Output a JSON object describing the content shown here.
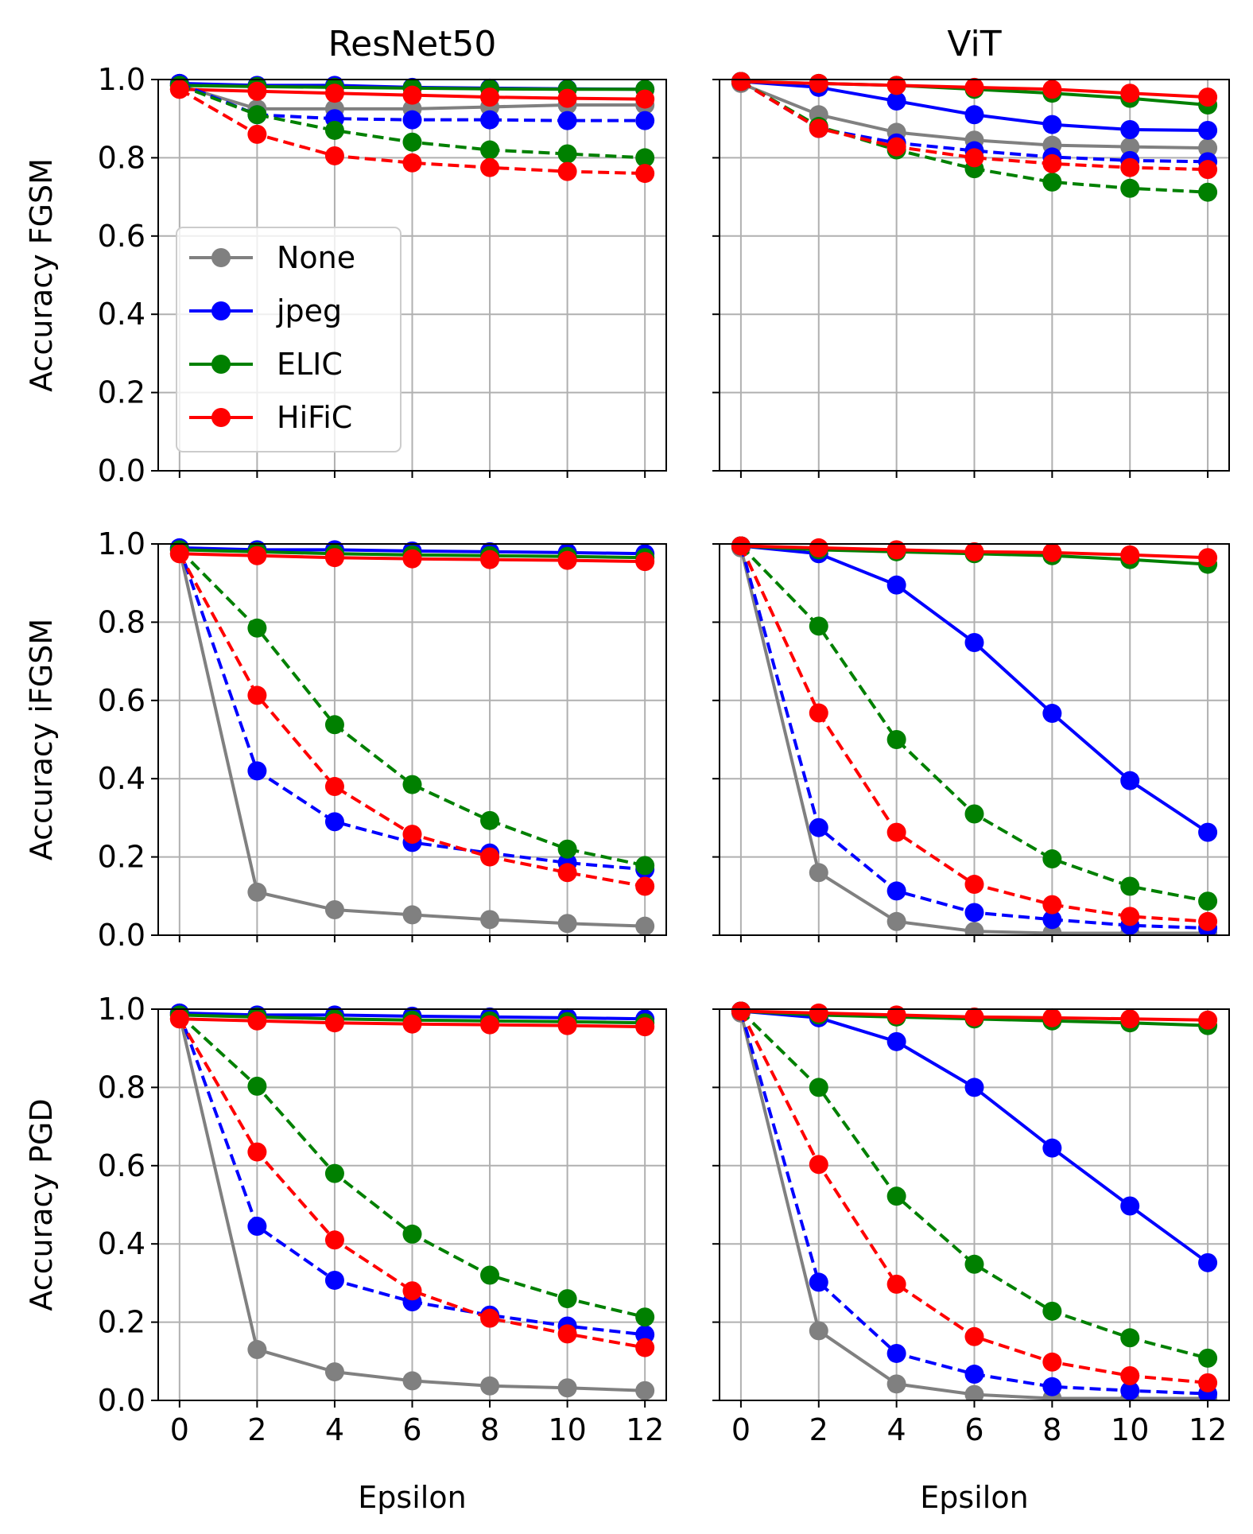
{
  "figure": {
    "column_titles": [
      "ResNet50",
      "ViT"
    ],
    "row_ylabels": [
      "Accuracy FGSM",
      "Accuracy iFGSM",
      "Accuracy PGD"
    ],
    "xlabel": "Epsilon",
    "legend": [
      "None",
      "jpeg",
      "ELIC",
      "HiFiC"
    ],
    "colors": {
      "None": "#808080",
      "jpeg": "#0000ff",
      "ELIC": "#008000",
      "HiFiC": "#ff0000"
    }
  },
  "chart_data": [
    {
      "type": "line",
      "title": "ResNet50",
      "ylabel": "Accuracy FGSM",
      "xlabel": "",
      "x": [
        0,
        2,
        4,
        6,
        8,
        10,
        12
      ],
      "xlim": [
        -0.55,
        12.55
      ],
      "ylim": [
        0,
        1.0
      ],
      "xticks": [
        "0",
        "2",
        "4",
        "6",
        "8",
        "10",
        "12"
      ],
      "yticks": [
        "0.0",
        "0.2",
        "0.4",
        "0.6",
        "0.8",
        "1.0"
      ],
      "legend": "center-left",
      "grid": true,
      "series": [
        {
          "name": "None",
          "style": "solid",
          "values": [
            0.985,
            0.925,
            0.925,
            0.925,
            0.93,
            0.935,
            0.935
          ]
        },
        {
          "name": "jpeg",
          "style": "solid",
          "values": [
            0.99,
            0.985,
            0.985,
            0.98,
            0.978,
            0.976,
            0.975
          ]
        },
        {
          "name": "ELIC",
          "style": "solid",
          "values": [
            0.985,
            0.982,
            0.98,
            0.978,
            0.976,
            0.975,
            0.975
          ]
        },
        {
          "name": "HiFiC",
          "style": "solid",
          "values": [
            0.975,
            0.97,
            0.965,
            0.96,
            0.955,
            0.952,
            0.95
          ]
        },
        {
          "name": "jpeg",
          "style": "dashed",
          "values": [
            0.99,
            0.91,
            0.9,
            0.897,
            0.897,
            0.895,
            0.895
          ]
        },
        {
          "name": "ELIC",
          "style": "dashed",
          "values": [
            0.985,
            0.91,
            0.87,
            0.84,
            0.82,
            0.81,
            0.8
          ]
        },
        {
          "name": "HiFiC",
          "style": "dashed",
          "values": [
            0.975,
            0.86,
            0.805,
            0.787,
            0.775,
            0.765,
            0.76
          ]
        }
      ]
    },
    {
      "type": "line",
      "title": "ViT",
      "ylabel": "",
      "xlabel": "",
      "x": [
        0,
        2,
        4,
        6,
        8,
        10,
        12
      ],
      "xlim": [
        -0.55,
        12.55
      ],
      "ylim": [
        0,
        1.0
      ],
      "xticks": [
        "0",
        "2",
        "4",
        "6",
        "8",
        "10",
        "12"
      ],
      "yticks": [],
      "legend": "",
      "grid": true,
      "series": [
        {
          "name": "None",
          "style": "solid",
          "values": [
            0.99,
            0.91,
            0.865,
            0.845,
            0.832,
            0.828,
            0.825
          ]
        },
        {
          "name": "jpeg",
          "style": "solid",
          "values": [
            0.995,
            0.98,
            0.945,
            0.91,
            0.885,
            0.872,
            0.87
          ]
        },
        {
          "name": "ELIC",
          "style": "solid",
          "values": [
            0.995,
            0.99,
            0.985,
            0.975,
            0.965,
            0.952,
            0.935
          ]
        },
        {
          "name": "HiFiC",
          "style": "solid",
          "values": [
            0.995,
            0.99,
            0.985,
            0.98,
            0.975,
            0.965,
            0.955
          ]
        },
        {
          "name": "jpeg",
          "style": "dashed",
          "values": [
            0.995,
            0.875,
            0.838,
            0.818,
            0.802,
            0.793,
            0.79
          ]
        },
        {
          "name": "ELIC",
          "style": "dashed",
          "values": [
            0.995,
            0.88,
            0.82,
            0.772,
            0.738,
            0.722,
            0.712
          ]
        },
        {
          "name": "HiFiC",
          "style": "dashed",
          "values": [
            0.995,
            0.875,
            0.828,
            0.8,
            0.785,
            0.775,
            0.77
          ]
        }
      ]
    },
    {
      "type": "line",
      "title": "",
      "ylabel": "Accuracy iFGSM",
      "xlabel": "",
      "x": [
        0,
        2,
        4,
        6,
        8,
        10,
        12
      ],
      "xlim": [
        -0.55,
        12.55
      ],
      "ylim": [
        0,
        1.0
      ],
      "xticks": [
        "0",
        "2",
        "4",
        "6",
        "8",
        "10",
        "12"
      ],
      "yticks": [
        "0.0",
        "0.2",
        "0.4",
        "0.6",
        "0.8",
        "1.0"
      ],
      "legend": "",
      "grid": true,
      "series": [
        {
          "name": "None",
          "style": "solid",
          "values": [
            0.985,
            0.11,
            0.065,
            0.052,
            0.04,
            0.03,
            0.023
          ]
        },
        {
          "name": "jpeg",
          "style": "solid",
          "values": [
            0.99,
            0.985,
            0.985,
            0.982,
            0.98,
            0.978,
            0.975
          ]
        },
        {
          "name": "ELIC",
          "style": "solid",
          "values": [
            0.985,
            0.98,
            0.975,
            0.972,
            0.97,
            0.968,
            0.965
          ]
        },
        {
          "name": "HiFiC",
          "style": "solid",
          "values": [
            0.975,
            0.97,
            0.965,
            0.962,
            0.96,
            0.958,
            0.955
          ]
        },
        {
          "name": "jpeg",
          "style": "dashed",
          "values": [
            0.99,
            0.42,
            0.29,
            0.237,
            0.21,
            0.185,
            0.168
          ]
        },
        {
          "name": "ELIC",
          "style": "dashed",
          "values": [
            0.985,
            0.785,
            0.538,
            0.385,
            0.293,
            0.22,
            0.178
          ]
        },
        {
          "name": "HiFiC",
          "style": "dashed",
          "values": [
            0.975,
            0.613,
            0.38,
            0.258,
            0.2,
            0.16,
            0.125
          ]
        }
      ]
    },
    {
      "type": "line",
      "title": "",
      "ylabel": "",
      "xlabel": "",
      "x": [
        0,
        2,
        4,
        6,
        8,
        10,
        12
      ],
      "xlim": [
        -0.55,
        12.55
      ],
      "ylim": [
        0,
        1.0
      ],
      "xticks": [
        "0",
        "2",
        "4",
        "6",
        "8",
        "10",
        "12"
      ],
      "yticks": [],
      "legend": "",
      "grid": true,
      "series": [
        {
          "name": "None",
          "style": "solid",
          "values": [
            0.99,
            0.16,
            0.035,
            0.01,
            0.005,
            0.005,
            0.005
          ]
        },
        {
          "name": "jpeg",
          "style": "solid",
          "values": [
            0.995,
            0.975,
            0.895,
            0.748,
            0.567,
            0.395,
            0.263
          ]
        },
        {
          "name": "ELIC",
          "style": "solid",
          "values": [
            0.995,
            0.985,
            0.98,
            0.975,
            0.97,
            0.96,
            0.948
          ]
        },
        {
          "name": "HiFiC",
          "style": "solid",
          "values": [
            0.995,
            0.99,
            0.985,
            0.98,
            0.978,
            0.972,
            0.965
          ]
        },
        {
          "name": "jpeg",
          "style": "dashed",
          "values": [
            0.995,
            0.275,
            0.113,
            0.058,
            0.04,
            0.025,
            0.018
          ]
        },
        {
          "name": "ELIC",
          "style": "dashed",
          "values": [
            0.995,
            0.79,
            0.5,
            0.31,
            0.195,
            0.125,
            0.087
          ]
        },
        {
          "name": "HiFiC",
          "style": "dashed",
          "values": [
            0.995,
            0.568,
            0.263,
            0.13,
            0.078,
            0.048,
            0.035
          ]
        }
      ]
    },
    {
      "type": "line",
      "title": "",
      "ylabel": "Accuracy PGD",
      "xlabel": "Epsilon",
      "x": [
        0,
        2,
        4,
        6,
        8,
        10,
        12
      ],
      "xlim": [
        -0.55,
        12.55
      ],
      "ylim": [
        0,
        1.0
      ],
      "xticks": [
        "0",
        "2",
        "4",
        "6",
        "8",
        "10",
        "12"
      ],
      "yticks": [
        "0.0",
        "0.2",
        "0.4",
        "0.6",
        "0.8",
        "1.0"
      ],
      "legend": "",
      "grid": true,
      "series": [
        {
          "name": "None",
          "style": "solid",
          "values": [
            0.985,
            0.13,
            0.073,
            0.05,
            0.037,
            0.032,
            0.025
          ]
        },
        {
          "name": "jpeg",
          "style": "solid",
          "values": [
            0.99,
            0.985,
            0.985,
            0.982,
            0.98,
            0.978,
            0.975
          ]
        },
        {
          "name": "ELIC",
          "style": "solid",
          "values": [
            0.985,
            0.98,
            0.975,
            0.972,
            0.97,
            0.968,
            0.965
          ]
        },
        {
          "name": "HiFiC",
          "style": "solid",
          "values": [
            0.975,
            0.97,
            0.965,
            0.962,
            0.96,
            0.958,
            0.955
          ]
        },
        {
          "name": "jpeg",
          "style": "dashed",
          "values": [
            0.99,
            0.445,
            0.307,
            0.252,
            0.218,
            0.19,
            0.168
          ]
        },
        {
          "name": "ELIC",
          "style": "dashed",
          "values": [
            0.985,
            0.803,
            0.58,
            0.425,
            0.32,
            0.26,
            0.213
          ]
        },
        {
          "name": "HiFiC",
          "style": "dashed",
          "values": [
            0.975,
            0.635,
            0.41,
            0.28,
            0.21,
            0.17,
            0.135
          ]
        }
      ]
    },
    {
      "type": "line",
      "title": "",
      "ylabel": "",
      "xlabel": "Epsilon",
      "x": [
        0,
        2,
        4,
        6,
        8,
        10,
        12
      ],
      "xlim": [
        -0.55,
        12.55
      ],
      "ylim": [
        0,
        1.0
      ],
      "xticks": [
        "0",
        "2",
        "4",
        "6",
        "8",
        "10",
        "12"
      ],
      "yticks": [],
      "legend": "",
      "grid": true,
      "series": [
        {
          "name": "None",
          "style": "solid",
          "values": [
            0.99,
            0.178,
            0.042,
            0.015,
            0.005,
            0.005,
            0.005
          ]
        },
        {
          "name": "jpeg",
          "style": "solid",
          "values": [
            0.995,
            0.978,
            0.917,
            0.8,
            0.645,
            0.497,
            0.352
          ]
        },
        {
          "name": "ELIC",
          "style": "solid",
          "values": [
            0.995,
            0.985,
            0.98,
            0.975,
            0.97,
            0.965,
            0.958
          ]
        },
        {
          "name": "HiFiC",
          "style": "solid",
          "values": [
            0.995,
            0.99,
            0.985,
            0.98,
            0.978,
            0.975,
            0.972
          ]
        },
        {
          "name": "jpeg",
          "style": "dashed",
          "values": [
            0.995,
            0.302,
            0.12,
            0.067,
            0.035,
            0.025,
            0.017
          ]
        },
        {
          "name": "ELIC",
          "style": "dashed",
          "values": [
            0.995,
            0.8,
            0.522,
            0.348,
            0.228,
            0.16,
            0.108
          ]
        },
        {
          "name": "HiFiC",
          "style": "dashed",
          "values": [
            0.995,
            0.603,
            0.297,
            0.163,
            0.098,
            0.063,
            0.045
          ]
        }
      ]
    }
  ]
}
